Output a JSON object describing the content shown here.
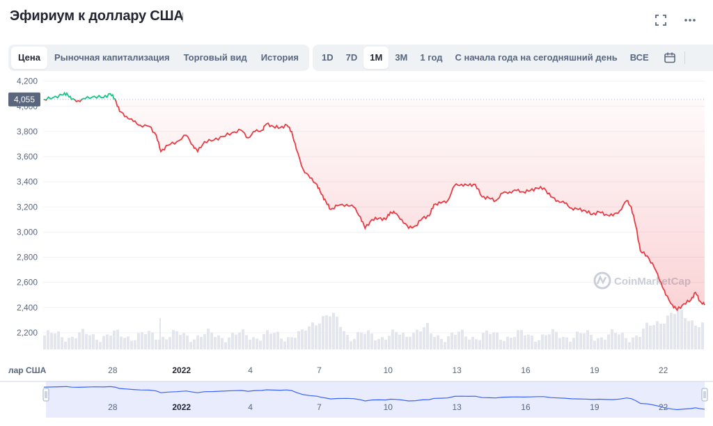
{
  "title": "Эфириум к доллару США",
  "icons": {
    "expand": "expand-icon",
    "more": "more-icon",
    "calendar": "calendar-icon"
  },
  "tabs": [
    {
      "label": "Цена",
      "active": true
    },
    {
      "label": "Рыночная капитализация",
      "active": false
    },
    {
      "label": "Торговый вид",
      "active": false
    },
    {
      "label": "История",
      "active": false
    }
  ],
  "ranges": [
    {
      "label": "1D",
      "active": false
    },
    {
      "label": "7D",
      "active": false
    },
    {
      "label": "1M",
      "active": true
    },
    {
      "label": "3M",
      "active": false
    },
    {
      "label": "1 год",
      "active": false
    },
    {
      "label": "С начала года на сегодняшний день",
      "active": false
    },
    {
      "label": "ВСЕ",
      "active": false
    }
  ],
  "watermark": "CoinMarketCap",
  "navigator_label": "лар США",
  "colors": {
    "down": "#ea3943",
    "up": "#16c784",
    "navigator_line": "#3861fb",
    "navigator_fill": "#e8ecfd",
    "volume": "#e3e6ec"
  },
  "chart_data": {
    "type": "line",
    "ylabel": "",
    "xlabel": "",
    "ylim": [
      2100,
      4270
    ],
    "y_ticks": [
      4200,
      4000,
      3800,
      3600,
      3400,
      3200,
      3000,
      2800,
      2600,
      2400,
      2200
    ],
    "current_price_label": "4,055",
    "reference_price": 4055,
    "x_ticks": [
      {
        "label": "28",
        "x": 28,
        "bold": false
      },
      {
        "label": "2022",
        "x": 31,
        "bold": true
      },
      {
        "label": "4",
        "x": 34,
        "bold": false
      },
      {
        "label": "7",
        "x": 37,
        "bold": false
      },
      {
        "label": "10",
        "x": 40,
        "bold": false
      },
      {
        "label": "13",
        "x": 43,
        "bold": false
      },
      {
        "label": "16",
        "x": 46,
        "bold": false
      },
      {
        "label": "19",
        "x": 49,
        "bold": false
      },
      {
        "label": "22",
        "x": 52,
        "bold": false
      }
    ],
    "x_range": [
      24.97,
      53.8
    ],
    "series": [
      {
        "values": [
          [
            25.0,
            4055
          ],
          [
            25.4,
            4070
          ],
          [
            25.8,
            4090
          ],
          [
            26.0,
            4105
          ],
          [
            26.2,
            4055
          ],
          [
            26.5,
            4045
          ],
          [
            26.8,
            4060
          ],
          [
            27.2,
            4080
          ],
          [
            27.6,
            4070
          ],
          [
            27.9,
            4100
          ],
          [
            28.1,
            4060
          ],
          [
            28.3,
            3960
          ],
          [
            28.6,
            3920
          ],
          [
            28.9,
            3880
          ],
          [
            29.2,
            3850
          ],
          [
            29.6,
            3840
          ],
          [
            29.9,
            3770
          ],
          [
            30.1,
            3640
          ],
          [
            30.4,
            3690
          ],
          [
            30.8,
            3720
          ],
          [
            31.2,
            3770
          ],
          [
            31.5,
            3690
          ],
          [
            31.7,
            3640
          ],
          [
            32.0,
            3720
          ],
          [
            32.4,
            3730
          ],
          [
            32.8,
            3760
          ],
          [
            33.2,
            3790
          ],
          [
            33.6,
            3810
          ],
          [
            33.9,
            3750
          ],
          [
            34.2,
            3800
          ],
          [
            34.5,
            3810
          ],
          [
            34.7,
            3860
          ],
          [
            35.0,
            3840
          ],
          [
            35.3,
            3830
          ],
          [
            35.6,
            3850
          ],
          [
            35.8,
            3800
          ],
          [
            36.0,
            3660
          ],
          [
            36.3,
            3500
          ],
          [
            36.6,
            3430
          ],
          [
            36.9,
            3380
          ],
          [
            37.1,
            3300
          ],
          [
            37.3,
            3240
          ],
          [
            37.5,
            3180
          ],
          [
            37.8,
            3210
          ],
          [
            38.2,
            3220
          ],
          [
            38.5,
            3200
          ],
          [
            38.8,
            3120
          ],
          [
            39.0,
            3030
          ],
          [
            39.3,
            3100
          ],
          [
            39.6,
            3110
          ],
          [
            39.9,
            3100
          ],
          [
            40.1,
            3160
          ],
          [
            40.3,
            3150
          ],
          [
            40.6,
            3100
          ],
          [
            40.9,
            3030
          ],
          [
            41.2,
            3050
          ],
          [
            41.5,
            3110
          ],
          [
            41.8,
            3130
          ],
          [
            42.0,
            3220
          ],
          [
            42.3,
            3230
          ],
          [
            42.6,
            3250
          ],
          [
            42.9,
            3370
          ],
          [
            43.2,
            3380
          ],
          [
            43.5,
            3370
          ],
          [
            43.8,
            3380
          ],
          [
            44.1,
            3280
          ],
          [
            44.4,
            3270
          ],
          [
            44.7,
            3250
          ],
          [
            45.0,
            3310
          ],
          [
            45.3,
            3320
          ],
          [
            45.6,
            3330
          ],
          [
            45.9,
            3320
          ],
          [
            46.2,
            3330
          ],
          [
            46.5,
            3350
          ],
          [
            46.8,
            3350
          ],
          [
            47.1,
            3280
          ],
          [
            47.4,
            3250
          ],
          [
            47.7,
            3230
          ],
          [
            48.0,
            3190
          ],
          [
            48.3,
            3180
          ],
          [
            48.6,
            3170
          ],
          [
            48.9,
            3140
          ],
          [
            49.2,
            3160
          ],
          [
            49.5,
            3140
          ],
          [
            49.8,
            3130
          ],
          [
            50.1,
            3170
          ],
          [
            50.4,
            3250
          ],
          [
            50.6,
            3200
          ],
          [
            50.8,
            3050
          ],
          [
            51.0,
            2850
          ],
          [
            51.3,
            2810
          ],
          [
            51.6,
            2720
          ],
          [
            51.9,
            2600
          ],
          [
            52.1,
            2500
          ],
          [
            52.4,
            2420
          ],
          [
            52.6,
            2380
          ],
          [
            52.9,
            2430
          ],
          [
            53.2,
            2460
          ],
          [
            53.4,
            2520
          ],
          [
            53.6,
            2450
          ],
          [
            53.8,
            2420
          ]
        ]
      }
    ]
  }
}
